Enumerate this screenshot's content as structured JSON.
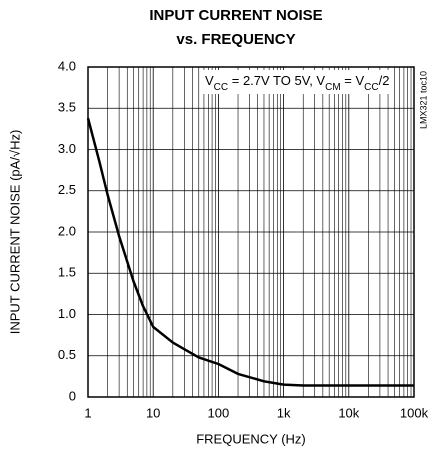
{
  "chart_data": {
    "type": "line",
    "title": [
      "INPUT CURRENT NOISE",
      "vs. FREQUENCY"
    ],
    "x_label": "FREQUENCY (Hz)",
    "y_label": "INPUT CURRENT NOISE (pA/√Hz)",
    "annotation": [
      "V",
      "CC",
      " = 2.7V TO 5V, V",
      "CM",
      " = V",
      "CC",
      "/2"
    ],
    "side_label": "LMX321 toc10",
    "x_scale": "log",
    "grid": true,
    "xlim": [
      1,
      100000
    ],
    "xticks": [
      1,
      10,
      100,
      {
        "value": 1000,
        "label": "1k"
      },
      {
        "value": 10000,
        "label": "10k"
      },
      {
        "value": 100000,
        "label": "100k"
      }
    ],
    "ylim": [
      0,
      4
    ],
    "yticks": [
      0,
      0.5,
      {
        "value": 1,
        "label": "1.0"
      },
      1.5,
      {
        "value": 2,
        "label": "2.0"
      },
      2.5,
      {
        "value": 3,
        "label": "3.0"
      },
      3.5,
      {
        "value": 4,
        "label": "4.0"
      }
    ],
    "x": [
      1,
      1.5,
      2,
      3,
      5,
      7,
      10,
      20,
      30,
      50,
      100,
      200,
      500,
      1000,
      2000,
      10000,
      100000
    ],
    "series": [
      {
        "color": "#000000",
        "values": [
          3.38,
          2.85,
          2.45,
          1.95,
          1.4,
          1.1,
          0.85,
          0.66,
          0.58,
          0.48,
          0.4,
          0.28,
          0.19,
          0.15,
          0.14,
          0.14,
          0.14
        ]
      }
    ]
  }
}
